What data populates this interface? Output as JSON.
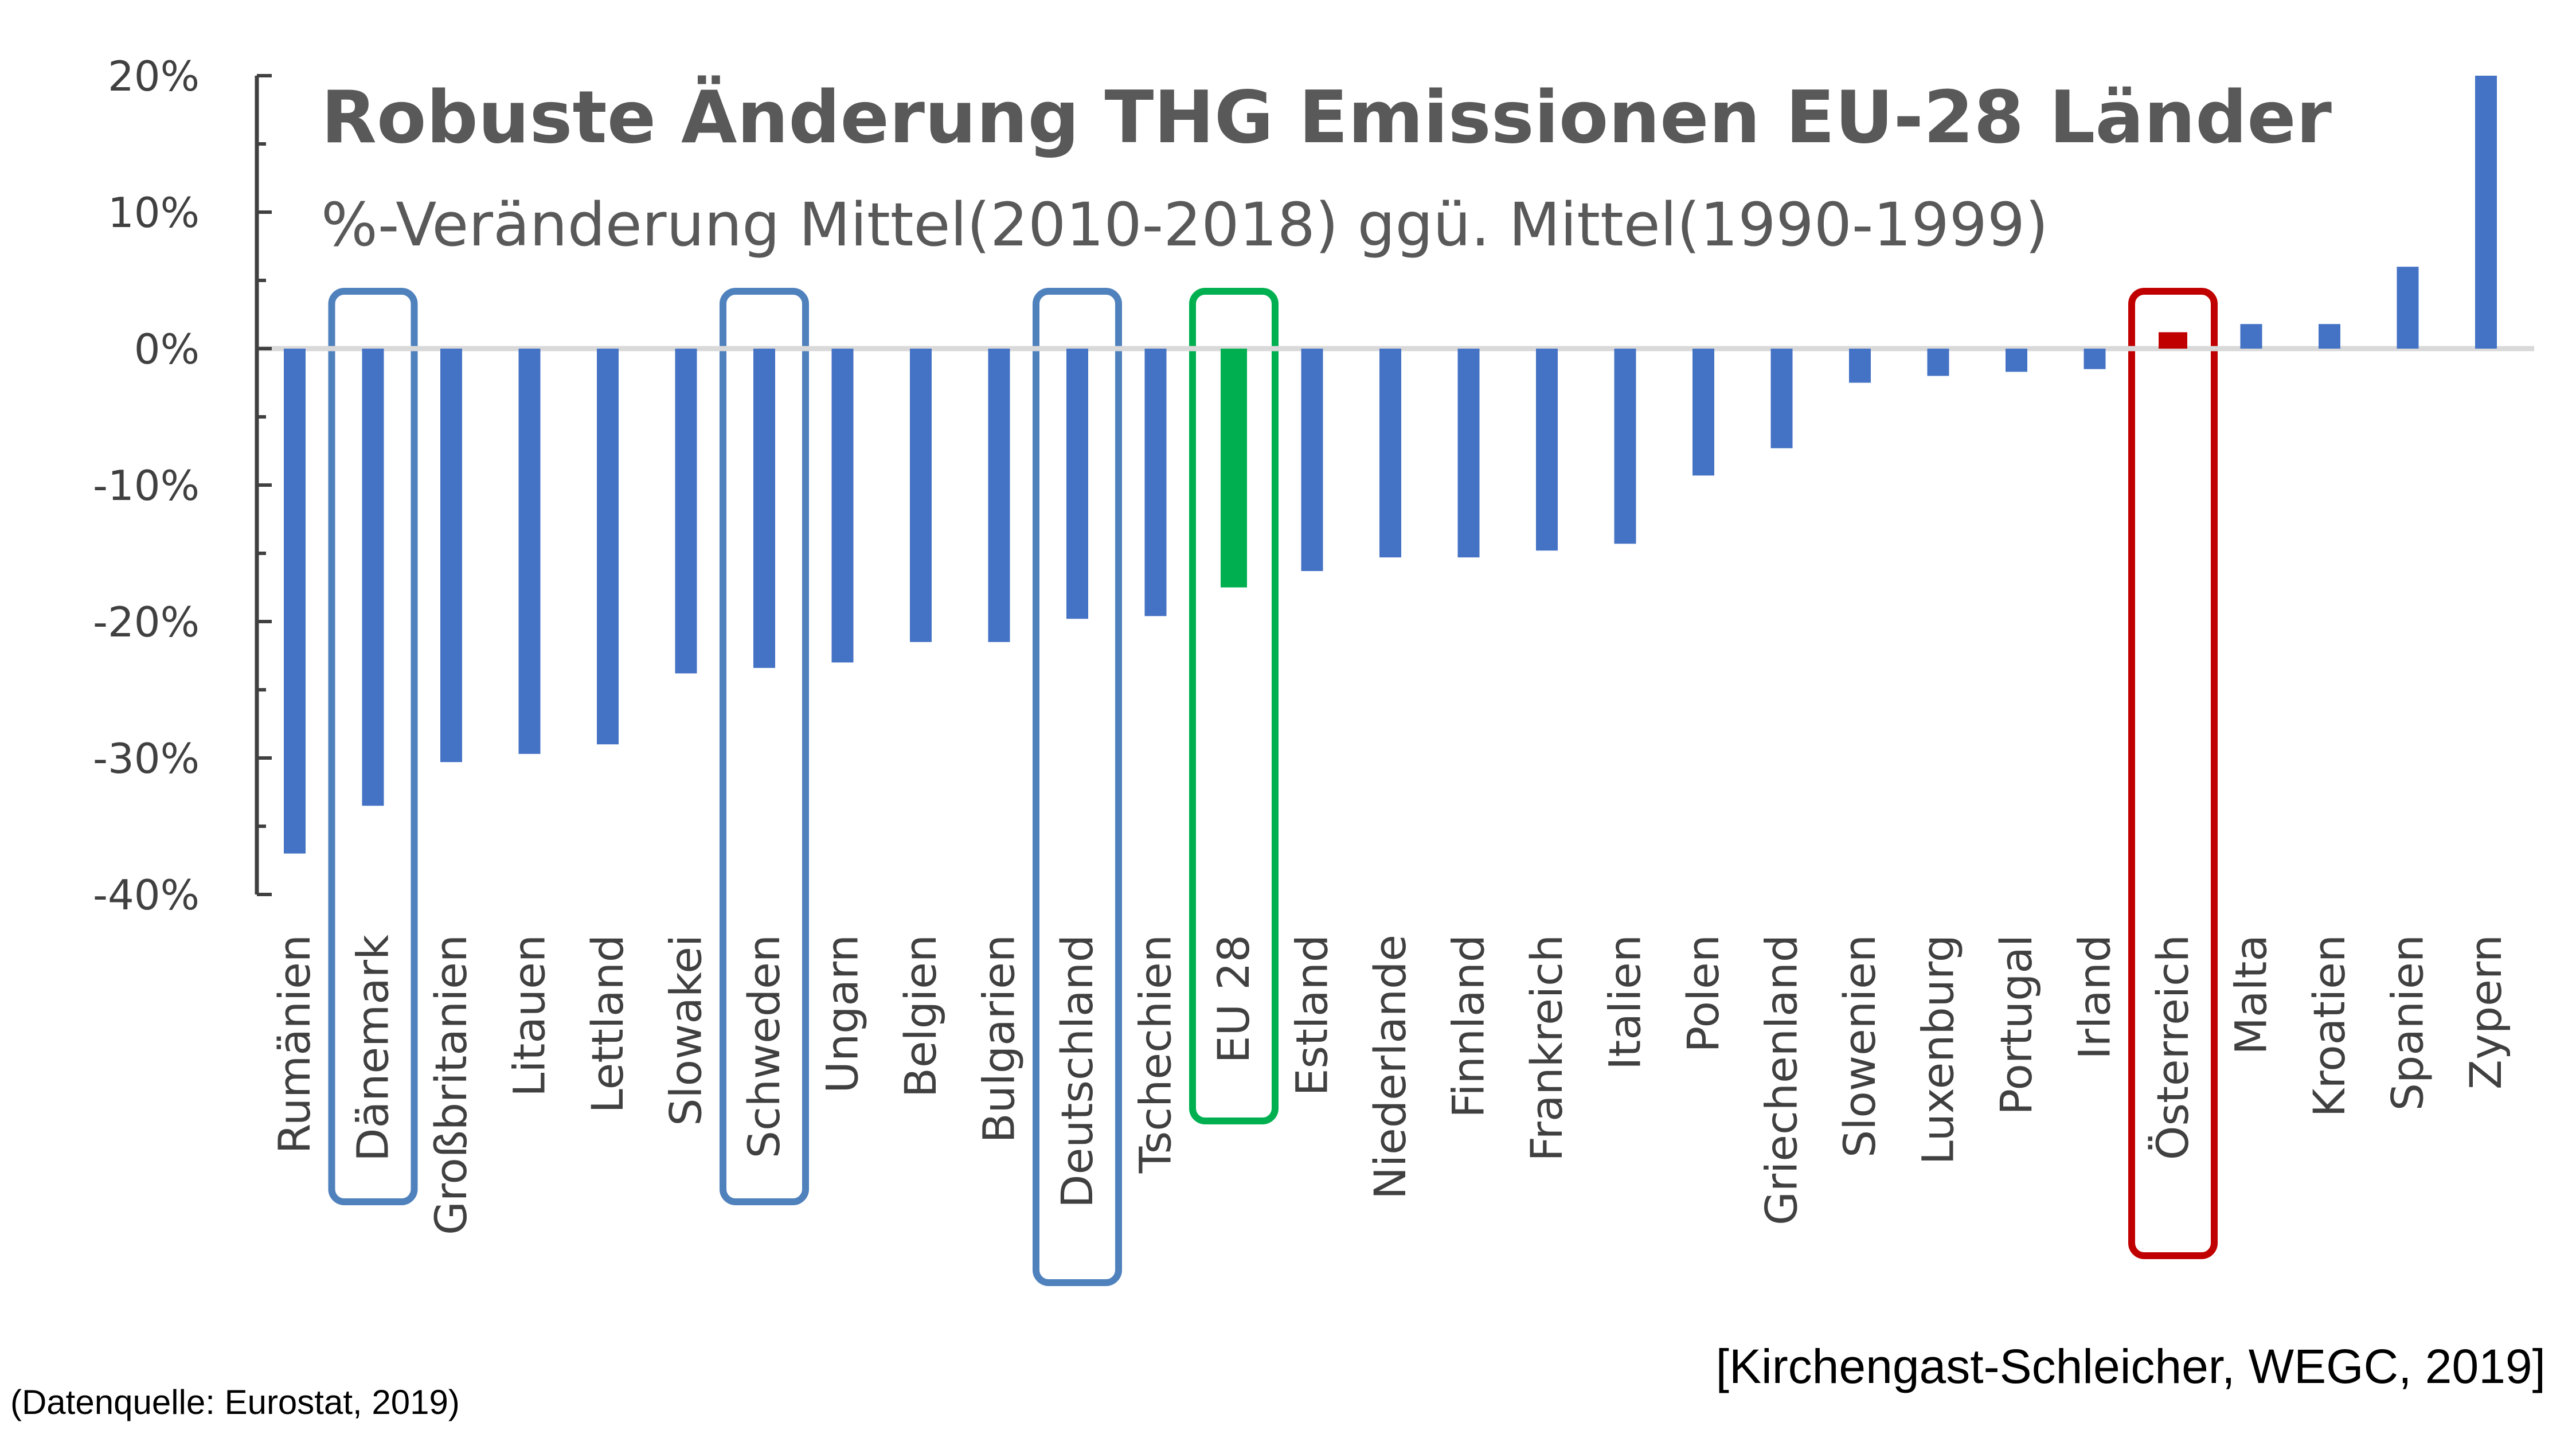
{
  "chart_data": {
    "type": "bar",
    "title": "Robuste Änderung THG Emissionen EU-28 Länder",
    "subtitle": "%-Veränderung Mittel(2010-2018) ggü. Mittel(1990-1999)",
    "xlabel": "",
    "ylabel": "",
    "ylim": [
      -40,
      20
    ],
    "yticks": [
      20,
      10,
      0,
      -10,
      -20,
      -30,
      -40
    ],
    "ytick_labels": [
      "20%",
      "10%",
      "0%",
      "-10%",
      "-20%",
      "-30%",
      "-40%"
    ],
    "grid": false,
    "categories": [
      "Rumänien",
      "Dänemark",
      "Großbritanien",
      "Litauen",
      "Lettland",
      "Slowakei",
      "Schweden",
      "Ungarn",
      "Belgien",
      "Bulgarien",
      "Deutschland",
      "Tschechien",
      "EU 28",
      "Estland",
      "Niederlande",
      "Finnland",
      "Frankreich",
      "Italien",
      "Polen",
      "Griechenland",
      "Slowenien",
      "Luxenburg",
      "Portugal",
      "Irland",
      "Österreich",
      "Malta",
      "Kroatien",
      "Spanien",
      "Zypern"
    ],
    "values": [
      -37,
      -33.5,
      -30.3,
      -29.7,
      -29,
      -23.8,
      -23.4,
      -23,
      -21.5,
      -21.5,
      -19.8,
      -19.6,
      -17.5,
      -16.3,
      -15.3,
      -15.3,
      -14.8,
      -14.3,
      -9.3,
      -7.3,
      -2.5,
      -2,
      -1.7,
      -1.5,
      1.2,
      1.8,
      1.8,
      6,
      20
    ],
    "colors": {
      "default": "#4472C4",
      "EU 28": "#00B050",
      "Österreich": "#C00000",
      "axis": "#404040",
      "zero_line": "#D9D9D9"
    },
    "highlight_boxes": [
      {
        "category": "Dänemark",
        "color": "#4F81BD"
      },
      {
        "category": "Schweden",
        "color": "#4F81BD"
      },
      {
        "category": "Deutschland",
        "color": "#4F81BD"
      },
      {
        "category": "EU 28",
        "color": "#00B050"
      },
      {
        "category": "Österreich",
        "color": "#C00000"
      }
    ]
  },
  "footer": {
    "credit": "[Kirchengast-Schleicher, WEGC, 2019]",
    "source": "(Datenquelle: Eurostat, 2019)"
  }
}
